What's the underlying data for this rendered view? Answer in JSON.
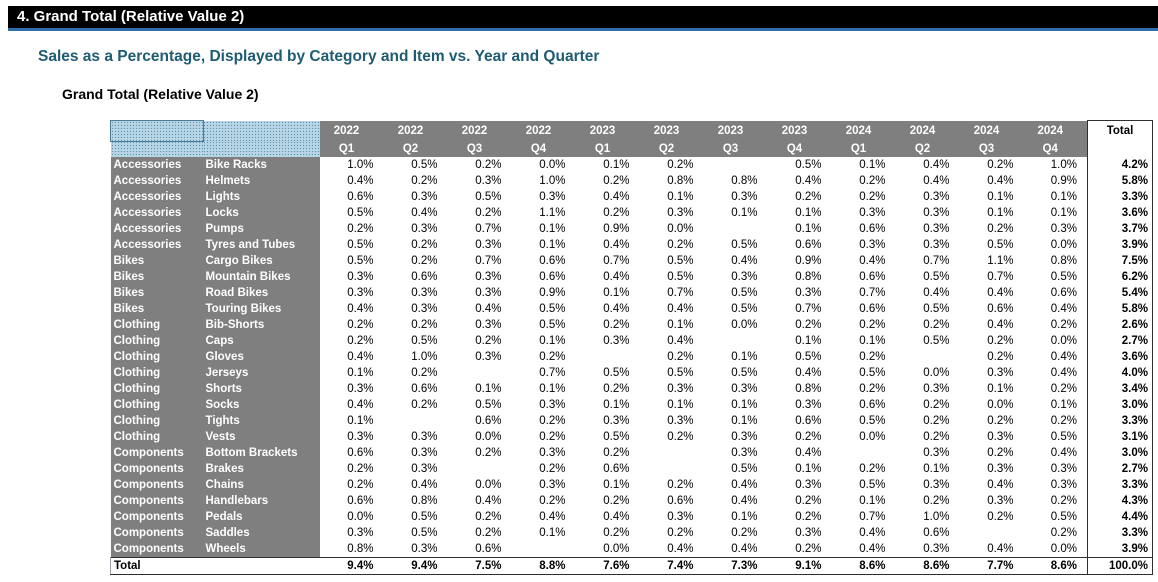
{
  "section_title": "4. Grand Total (Relative Value 2)",
  "subtitle": "Sales as a Percentage, Displayed by Category and Item vs. Year and Quarter",
  "table_title": "Grand Total (Relative Value 2)",
  "colors": {
    "banner": "#000000",
    "banner_rule": "#2e6fa7",
    "subtitle": "#1f5b73",
    "header_fill": "#7f7f7f",
    "selection_fill": "#b7d5e5"
  },
  "years": [
    "2022",
    "2022",
    "2022",
    "2022",
    "2023",
    "2023",
    "2023",
    "2023",
    "2024",
    "2024",
    "2024",
    "2024"
  ],
  "quarters": [
    "Q1",
    "Q2",
    "Q3",
    "Q4",
    "Q1",
    "Q2",
    "Q3",
    "Q4",
    "Q1",
    "Q2",
    "Q3",
    "Q4"
  ],
  "total_header": "Total",
  "rows": [
    {
      "category": "Accessories",
      "item": "Bike Racks",
      "values": [
        "1.0%",
        "0.5%",
        "0.2%",
        "0.0%",
        "0.1%",
        "0.2%",
        "",
        "0.5%",
        "0.1%",
        "0.4%",
        "0.2%",
        "1.0%"
      ],
      "total": "4.2%"
    },
    {
      "category": "Accessories",
      "item": "Helmets",
      "values": [
        "0.4%",
        "0.2%",
        "0.3%",
        "1.0%",
        "0.2%",
        "0.8%",
        "0.8%",
        "0.4%",
        "0.2%",
        "0.4%",
        "0.4%",
        "0.9%"
      ],
      "total": "5.8%"
    },
    {
      "category": "Accessories",
      "item": "Lights",
      "values": [
        "0.6%",
        "0.3%",
        "0.5%",
        "0.3%",
        "0.4%",
        "0.1%",
        "0.3%",
        "0.2%",
        "0.2%",
        "0.3%",
        "0.1%",
        "0.1%"
      ],
      "total": "3.3%"
    },
    {
      "category": "Accessories",
      "item": "Locks",
      "values": [
        "0.5%",
        "0.4%",
        "0.2%",
        "1.1%",
        "0.2%",
        "0.3%",
        "0.1%",
        "0.1%",
        "0.3%",
        "0.3%",
        "0.1%",
        "0.1%"
      ],
      "total": "3.6%"
    },
    {
      "category": "Accessories",
      "item": "Pumps",
      "values": [
        "0.2%",
        "0.3%",
        "0.7%",
        "0.1%",
        "0.9%",
        "0.0%",
        "",
        "0.1%",
        "0.6%",
        "0.3%",
        "0.2%",
        "0.3%"
      ],
      "total": "3.7%"
    },
    {
      "category": "Accessories",
      "item": "Tyres and Tubes",
      "values": [
        "0.5%",
        "0.2%",
        "0.3%",
        "0.1%",
        "0.4%",
        "0.2%",
        "0.5%",
        "0.6%",
        "0.3%",
        "0.3%",
        "0.5%",
        "0.0%"
      ],
      "total": "3.9%"
    },
    {
      "category": "Bikes",
      "item": "Cargo Bikes",
      "values": [
        "0.5%",
        "0.2%",
        "0.7%",
        "0.6%",
        "0.7%",
        "0.5%",
        "0.4%",
        "0.9%",
        "0.4%",
        "0.7%",
        "1.1%",
        "0.8%"
      ],
      "total": "7.5%"
    },
    {
      "category": "Bikes",
      "item": "Mountain Bikes",
      "values": [
        "0.3%",
        "0.6%",
        "0.3%",
        "0.6%",
        "0.4%",
        "0.5%",
        "0.3%",
        "0.8%",
        "0.6%",
        "0.5%",
        "0.7%",
        "0.5%"
      ],
      "total": "6.2%"
    },
    {
      "category": "Bikes",
      "item": "Road Bikes",
      "values": [
        "0.3%",
        "0.3%",
        "0.3%",
        "0.9%",
        "0.1%",
        "0.7%",
        "0.5%",
        "0.3%",
        "0.7%",
        "0.4%",
        "0.4%",
        "0.6%"
      ],
      "total": "5.4%"
    },
    {
      "category": "Bikes",
      "item": "Touring Bikes",
      "values": [
        "0.4%",
        "0.3%",
        "0.4%",
        "0.5%",
        "0.4%",
        "0.4%",
        "0.5%",
        "0.7%",
        "0.6%",
        "0.5%",
        "0.6%",
        "0.4%"
      ],
      "total": "5.8%"
    },
    {
      "category": "Clothing",
      "item": "Bib-Shorts",
      "values": [
        "0.2%",
        "0.2%",
        "0.3%",
        "0.5%",
        "0.2%",
        "0.1%",
        "0.0%",
        "0.2%",
        "0.2%",
        "0.2%",
        "0.4%",
        "0.2%"
      ],
      "total": "2.6%"
    },
    {
      "category": "Clothing",
      "item": "Caps",
      "values": [
        "0.2%",
        "0.5%",
        "0.2%",
        "0.1%",
        "0.3%",
        "0.4%",
        "",
        "0.1%",
        "0.1%",
        "0.5%",
        "0.2%",
        "0.0%"
      ],
      "total": "2.7%"
    },
    {
      "category": "Clothing",
      "item": "Gloves",
      "values": [
        "0.4%",
        "1.0%",
        "0.3%",
        "0.2%",
        "",
        "0.2%",
        "0.1%",
        "0.5%",
        "0.2%",
        "",
        "0.2%",
        "0.4%"
      ],
      "total": "3.6%"
    },
    {
      "category": "Clothing",
      "item": "Jerseys",
      "values": [
        "0.1%",
        "0.2%",
        "",
        "0.7%",
        "0.5%",
        "0.5%",
        "0.5%",
        "0.4%",
        "0.5%",
        "0.0%",
        "0.3%",
        "0.4%"
      ],
      "total": "4.0%"
    },
    {
      "category": "Clothing",
      "item": "Shorts",
      "values": [
        "0.3%",
        "0.6%",
        "0.1%",
        "0.1%",
        "0.2%",
        "0.3%",
        "0.3%",
        "0.8%",
        "0.2%",
        "0.3%",
        "0.1%",
        "0.2%"
      ],
      "total": "3.4%"
    },
    {
      "category": "Clothing",
      "item": "Socks",
      "values": [
        "0.4%",
        "0.2%",
        "0.5%",
        "0.3%",
        "0.1%",
        "0.1%",
        "0.1%",
        "0.3%",
        "0.6%",
        "0.2%",
        "0.0%",
        "0.1%"
      ],
      "total": "3.0%"
    },
    {
      "category": "Clothing",
      "item": "Tights",
      "values": [
        "0.1%",
        "",
        "0.6%",
        "0.2%",
        "0.3%",
        "0.3%",
        "0.1%",
        "0.6%",
        "0.5%",
        "0.2%",
        "0.2%",
        "0.2%"
      ],
      "total": "3.3%"
    },
    {
      "category": "Clothing",
      "item": "Vests",
      "values": [
        "0.3%",
        "0.3%",
        "0.0%",
        "0.2%",
        "0.5%",
        "0.2%",
        "0.3%",
        "0.2%",
        "0.0%",
        "0.2%",
        "0.3%",
        "0.5%"
      ],
      "total": "3.1%"
    },
    {
      "category": "Components",
      "item": "Bottom Brackets",
      "values": [
        "0.6%",
        "0.3%",
        "0.2%",
        "0.3%",
        "0.2%",
        "",
        "0.3%",
        "0.4%",
        "",
        "0.3%",
        "0.2%",
        "0.4%"
      ],
      "total": "3.0%"
    },
    {
      "category": "Components",
      "item": "Brakes",
      "values": [
        "0.2%",
        "0.3%",
        "",
        "0.2%",
        "0.6%",
        "",
        "0.5%",
        "0.1%",
        "0.2%",
        "0.1%",
        "0.3%",
        "0.3%"
      ],
      "total": "2.7%"
    },
    {
      "category": "Components",
      "item": "Chains",
      "values": [
        "0.2%",
        "0.4%",
        "0.0%",
        "0.3%",
        "0.1%",
        "0.2%",
        "0.4%",
        "0.3%",
        "0.5%",
        "0.3%",
        "0.4%",
        "0.3%"
      ],
      "total": "3.3%"
    },
    {
      "category": "Components",
      "item": "Handlebars",
      "values": [
        "0.6%",
        "0.8%",
        "0.4%",
        "0.2%",
        "0.2%",
        "0.6%",
        "0.4%",
        "0.2%",
        "0.1%",
        "0.2%",
        "0.3%",
        "0.2%"
      ],
      "total": "4.3%"
    },
    {
      "category": "Components",
      "item": "Pedals",
      "values": [
        "0.0%",
        "0.5%",
        "0.2%",
        "0.4%",
        "0.4%",
        "0.3%",
        "0.1%",
        "0.2%",
        "0.7%",
        "1.0%",
        "0.2%",
        "0.5%"
      ],
      "total": "4.4%"
    },
    {
      "category": "Components",
      "item": "Saddles",
      "values": [
        "0.3%",
        "0.5%",
        "0.2%",
        "0.1%",
        "0.2%",
        "0.2%",
        "0.2%",
        "0.3%",
        "0.4%",
        "0.6%",
        "",
        "0.2%"
      ],
      "total": "3.3%"
    },
    {
      "category": "Components",
      "item": "Wheels",
      "values": [
        "0.8%",
        "0.3%",
        "0.6%",
        "",
        "0.0%",
        "0.4%",
        "0.4%",
        "0.2%",
        "0.4%",
        "0.3%",
        "0.4%",
        "0.0%"
      ],
      "total": "3.9%"
    }
  ],
  "grand_total": {
    "label": "Total",
    "values": [
      "9.4%",
      "9.4%",
      "7.5%",
      "8.8%",
      "7.6%",
      "7.4%",
      "7.3%",
      "9.1%",
      "8.6%",
      "8.6%",
      "7.7%",
      "8.6%"
    ],
    "total": "100.0%"
  }
}
